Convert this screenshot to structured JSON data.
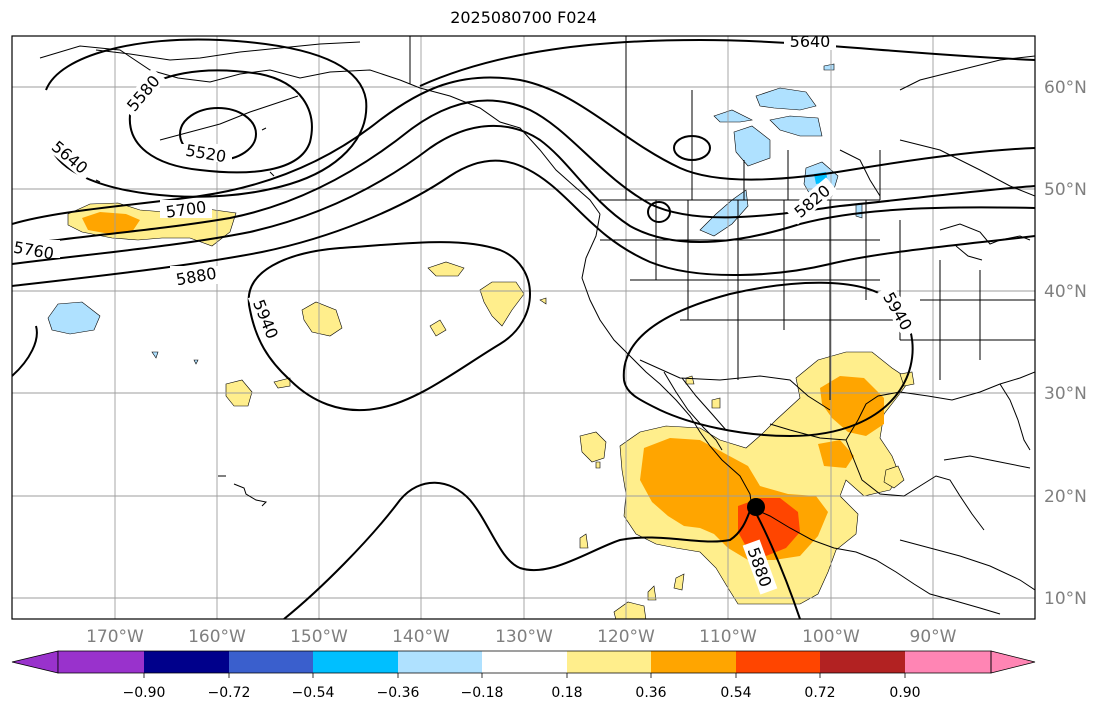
{
  "title": "2025080700 F024",
  "map": {
    "lat_labels": [
      "60°N",
      "50°N",
      "40°N",
      "30°N",
      "20°N",
      "10°N"
    ],
    "lon_labels": [
      "170°W",
      "160°W",
      "150°W",
      "140°W",
      "130°W",
      "120°W",
      "110°W",
      "100°W",
      "90°W"
    ],
    "contour_labels": [
      "5640",
      "5580",
      "5520",
      "5640",
      "5700",
      "5760",
      "5880",
      "5940",
      "5820",
      "5940",
      "5880"
    ],
    "colors": {
      "land_outline": "#000000",
      "grid": "#9e9e9e",
      "contour": "#000000",
      "marker": "#000000"
    }
  },
  "colorbar": {
    "ticks": [
      "−0.90",
      "−0.72",
      "−0.54",
      "−0.36",
      "−0.18",
      "0.18",
      "0.36",
      "0.54",
      "0.72",
      "0.90"
    ],
    "colors": [
      "#9932cc",
      "#00008b",
      "#3a5fcd",
      "#00bfff",
      "#afe1ff",
      "#ffffff",
      "#ffee8c",
      "#ffa500",
      "#ff4500",
      "#b22222",
      "#ff85b4"
    ]
  }
}
